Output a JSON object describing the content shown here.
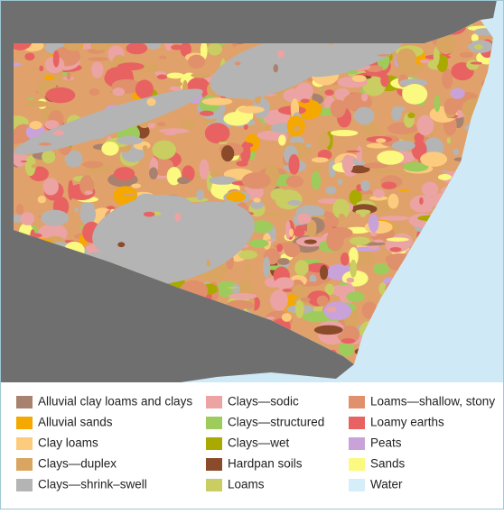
{
  "legend": {
    "items": [
      {
        "label": "Alluvial clay loams and clays",
        "color": "#a8826f"
      },
      {
        "label": "Alluvial sands",
        "color": "#f5a800"
      },
      {
        "label": "Clay loams",
        "color": "#fccb7e"
      },
      {
        "label": "Clays—duplex",
        "color": "#d9a560"
      },
      {
        "label": "Clays—shrink–swell",
        "color": "#b4b4b4"
      },
      {
        "label": "Clays—sodic",
        "color": "#eba3a3"
      },
      {
        "label": "Clays—structured",
        "color": "#9dcc5c"
      },
      {
        "label": "Clays—wet",
        "color": "#a9a900"
      },
      {
        "label": "Hardpan soils",
        "color": "#8b4b2b"
      },
      {
        "label": "Loams",
        "color": "#c9cd62"
      },
      {
        "label": "Loams—shallow, stony",
        "color": "#e0906a"
      },
      {
        "label": "Loamy earths",
        "color": "#e86262"
      },
      {
        "label": "Peats",
        "color": "#c9a2d9"
      },
      {
        "label": "Sands",
        "color": "#fbf97f"
      },
      {
        "label": "Water",
        "color": "#d6eefa"
      }
    ]
  }
}
